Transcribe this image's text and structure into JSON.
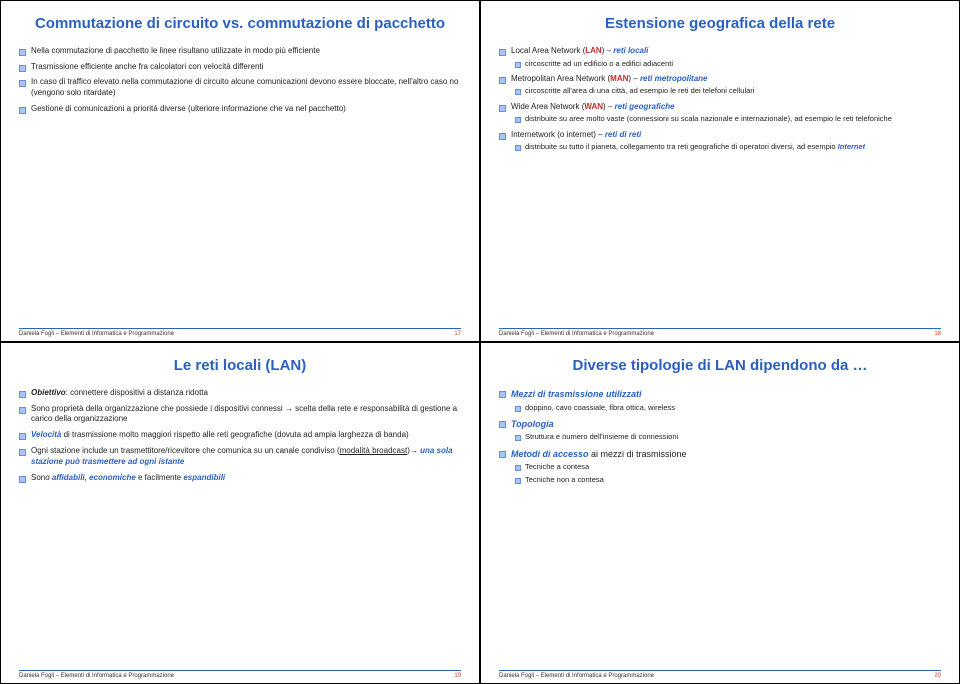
{
  "footer_text": "Daniela Fogli – Elementi di Informatica e Programmazione",
  "slides": {
    "s1": {
      "title": "Commutazione di circuito vs. commutazione di pacchetto",
      "page": "17",
      "b1": "Nella commutazione di pacchetto le linee risultano utilizzate in modo più efficiente",
      "b2": "Trasmissione efficiente anche fra calcolatori con velocità differenti",
      "b3": "In caso di traffico elevato nella commutazione di circuito alcune comunicazioni devono essere bloccate, nell'altro caso no (vengono solo ritardate)",
      "b4": "Gestione di comunicazioni a priorità diverse (ulteriore informazione che va nel pacchetto)"
    },
    "s2": {
      "title": "Estensione geografica della rete",
      "page": "18",
      "lan_pre": "Local Area Network (",
      "lan_abbr": "LAN",
      "lan_post": ") – ",
      "lan_term": "reti locali",
      "lan_sub": "circoscritte ad un edificio o a edifici adiacenti",
      "man_pre": "Metropolitan Area Network (",
      "man_abbr": "MAN",
      "man_post": ") – ",
      "man_term": "reti metropolitane",
      "man_sub": "circoscritte all'area di una città, ad esempio le reti dei telefoni cellulari",
      "wan_pre": "Wide Area Network (",
      "wan_abbr": "WAN",
      "wan_post": ") – ",
      "wan_term": "reti geografiche",
      "wan_sub": "distribuite su aree molto vaste (connessioni su scala nazionale e internazionale), ad esempio le reti telefoniche",
      "inet_pre": "Internetwork (o internet) – ",
      "inet_term": "reti di reti",
      "inet_sub_pre": "distribuite su tutto il pianeta, collegamento tra reti geografiche di operatori diversi, ad esempio ",
      "inet_sub_em": "Internet"
    },
    "s3": {
      "title": "Le reti locali (LAN)",
      "page": "19",
      "b1_lead": "Obiettivo",
      "b1_rest": ": connettere dispositivi a distanza ridotta",
      "b2_pre": "Sono proprietà della organizzazione che possiede i dispositivi connessi ",
      "b2_arrow": "→",
      "b2_post": " scelta della rete e responsabilità di gestione a carico della organizzazione",
      "b3_lead": "Velocità ",
      "b3_rest": "di trasmissione molto maggiori rispetto alle reti geografiche (dovuta ad ampia larghezza di banda)",
      "b4_pre": "Ogni stazione include un trasmettitore/ricevitore che comunica su un canale condiviso (",
      "b4_u": "modalità broadcast",
      "b4_mid": ")",
      "b4_arrow": "→",
      "b4_em": " una sola stazione può trasmettere ad ogni istante",
      "b5_pre": "Sono ",
      "b5_a": "affidabili, economiche ",
      "b5_mid": "e facilmente ",
      "b5_b": "espandibili"
    },
    "s4": {
      "title": "Diverse tipologie di LAN dipendono da …",
      "page": "20",
      "h1": "Mezzi di trasmissione utilizzati",
      "h1_sub": "doppino, cavo coassiale, fibra ottica, wireless",
      "h2": "Topologia",
      "h2_sub": "Struttura e numero dell'insieme di connessioni",
      "h3_lead": "Metodi di accesso ",
      "h3_rest": "ai mezzi di trasmissione",
      "h3_sub1": "Tecniche a contesa",
      "h3_sub2": "Tecniche non a contesa"
    }
  }
}
